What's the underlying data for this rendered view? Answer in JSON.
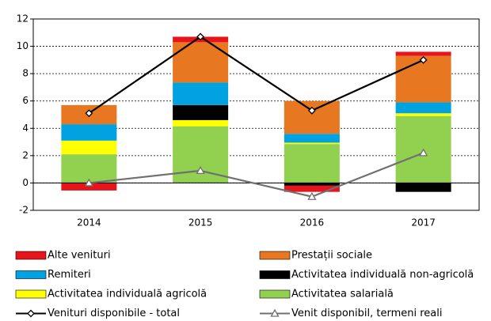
{
  "chart_data": {
    "type": "bar",
    "categories": [
      "2014",
      "2015",
      "2016",
      "2017"
    ],
    "ylim": [
      -2,
      12
    ],
    "yticks": [
      -2,
      0,
      2,
      4,
      6,
      8,
      10,
      12
    ],
    "grid": true,
    "series": [
      {
        "name": "Alte venituri",
        "type": "bar",
        "color": "#e8141c",
        "values": [
          -0.55,
          0.4,
          -0.45,
          0.3
        ]
      },
      {
        "name": "Prestații sociale",
        "type": "bar",
        "color": "#e87722",
        "values": [
          1.4,
          2.95,
          2.4,
          3.4
        ]
      },
      {
        "name": "Remiteri",
        "type": "bar",
        "color": "#00a3e0",
        "values": [
          1.2,
          1.65,
          0.65,
          0.8
        ]
      },
      {
        "name": "Activitatea individuală non-agricolă",
        "type": "bar",
        "color": "#000000",
        "values": [
          0,
          1.1,
          -0.2,
          -0.65
        ]
      },
      {
        "name": "Activitatea individuală agricolă",
        "type": "bar",
        "color": "#ffff00",
        "values": [
          1.0,
          0.45,
          0.1,
          0.2
        ]
      },
      {
        "name": "Activitatea salarială",
        "type": "bar",
        "color": "#92d050",
        "values": [
          2.1,
          4.15,
          2.85,
          4.9
        ]
      },
      {
        "name": "Venituri disponibile - total",
        "type": "line",
        "marker": "diamond",
        "color": "#000000",
        "values": [
          5.1,
          10.7,
          5.3,
          9.0
        ]
      },
      {
        "name": "Venit disponibil, termeni reali",
        "type": "line",
        "marker": "triangle",
        "color": "#707070",
        "values": [
          0,
          0.9,
          -1.0,
          2.2
        ]
      }
    ]
  }
}
